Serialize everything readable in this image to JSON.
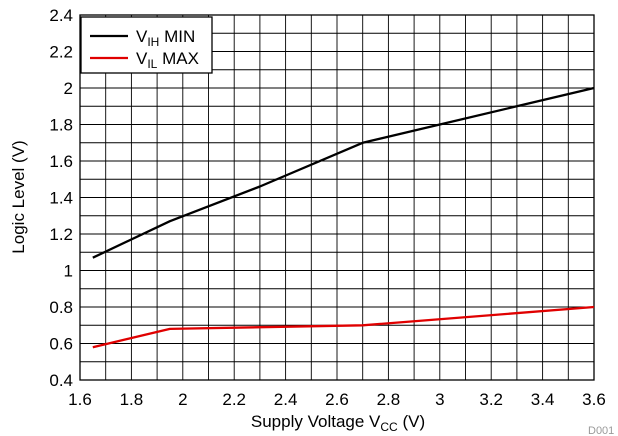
{
  "chart_data": {
    "type": "line",
    "xlabel": "Supply Voltage V",
    "xlabel_sub": "CC",
    "xlabel_unit": " (V)",
    "ylabel": "Logic Level (V)",
    "xlim": [
      1.6,
      3.6
    ],
    "ylim": [
      0.4,
      2.4
    ],
    "xticks": [
      1.6,
      1.8,
      2,
      2.2,
      2.4,
      2.6,
      2.8,
      3,
      3.2,
      3.4,
      3.6
    ],
    "xtick_labels": [
      "1.6",
      "1.8",
      "2",
      "2.2",
      "2.4",
      "2.6",
      "2.8",
      "3",
      "3.2",
      "3.4",
      "3.6"
    ],
    "yticks": [
      0.4,
      0.6,
      0.8,
      1,
      1.2,
      1.4,
      1.6,
      1.8,
      2,
      2.2,
      2.4
    ],
    "ytick_labels": [
      "0.4",
      "0.6",
      "0.8",
      "1",
      "1.2",
      "1.4",
      "1.6",
      "1.8",
      "2",
      "2.2",
      "2.4"
    ],
    "grid": true,
    "grid_x_step": 0.1,
    "grid_y_step": 0.1,
    "legend_position": "top-left",
    "series": [
      {
        "name": "MIN",
        "name_base": "V",
        "name_sub": "IH",
        "color": "#000000",
        "x": [
          1.65,
          1.95,
          2.3,
          2.7,
          3.0,
          3.6
        ],
        "y": [
          1.07,
          1.27,
          1.46,
          1.7,
          1.8,
          2.0
        ]
      },
      {
        "name": "MAX",
        "name_base": "V",
        "name_sub": "IL",
        "color": "#e00000",
        "x": [
          1.65,
          1.95,
          2.7,
          3.6
        ],
        "y": [
          0.58,
          0.68,
          0.7,
          0.8
        ]
      }
    ],
    "figure_id": "D001"
  }
}
